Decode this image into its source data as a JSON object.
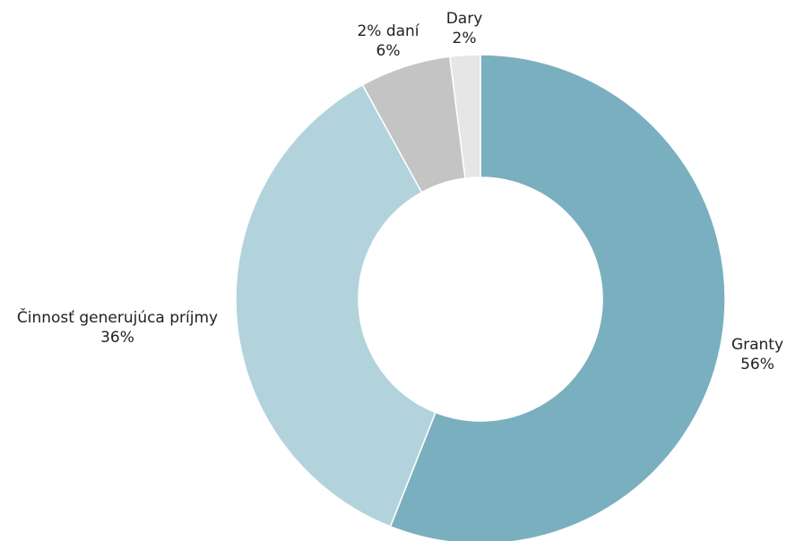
{
  "chart_data": {
    "type": "pie",
    "donut": true,
    "title": "",
    "slices": [
      {
        "name": "Granty",
        "value": 56,
        "label": "56%",
        "color": "#7aafbf"
      },
      {
        "name": "Činnosť generujúca príjmy",
        "value": 36,
        "label": "36%",
        "color": "#b3d3dc"
      },
      {
        "name": "2% daní",
        "value": 6,
        "label": "6%",
        "color": "#c4c4c4"
      },
      {
        "name": "Dary",
        "value": 2,
        "label": "2%",
        "color": "#e6e6e6"
      }
    ],
    "start_angle": "top",
    "direction": "clockwise",
    "legend": "none"
  }
}
